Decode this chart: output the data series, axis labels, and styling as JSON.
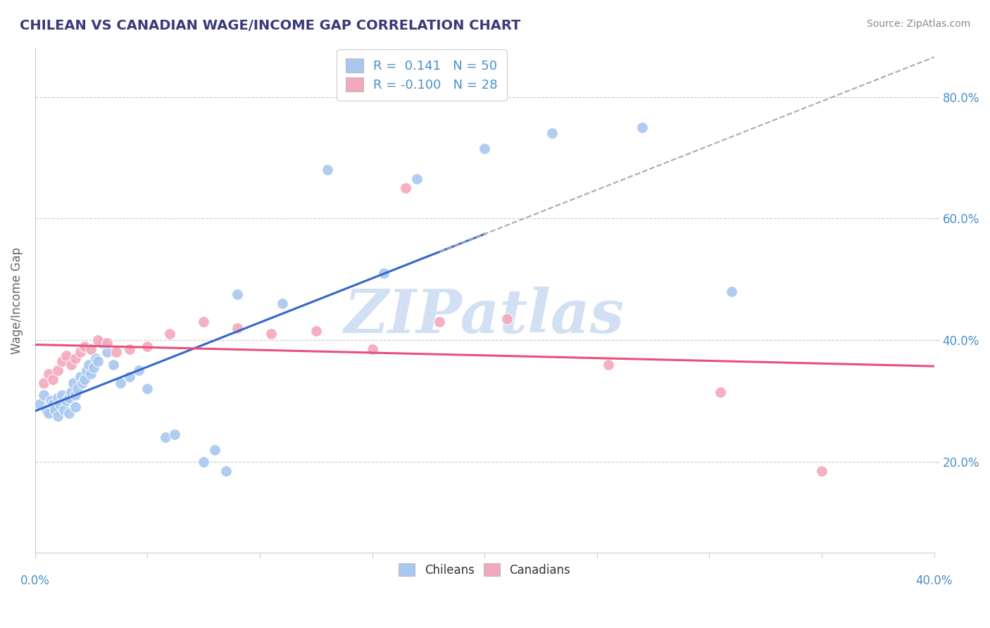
{
  "title": "CHILEAN VS CANADIAN WAGE/INCOME GAP CORRELATION CHART",
  "source": "Source: ZipAtlas.com",
  "ylabel": "Wage/Income Gap",
  "y_ticks": [
    0.2,
    0.4,
    0.6,
    0.8
  ],
  "y_tick_labels": [
    "20.0%",
    "40.0%",
    "60.0%",
    "80.0%"
  ],
  "x_lim": [
    0.0,
    0.4
  ],
  "y_lim": [
    0.05,
    0.88
  ],
  "blue_color": "#A8C8F0",
  "pink_color": "#F4A8BC",
  "blue_line_color": "#3366CC",
  "pink_line_color": "#E8507A",
  "trend_line_color": "#AAAAAA",
  "legend_R1": " 0.141",
  "legend_N1": "50",
  "legend_R2": "-0.100",
  "legend_N2": "28",
  "watermark": "ZIPatlas",
  "watermark_color": "#C0D4EE",
  "title_color": "#3A3A7A",
  "axis_color": "#4A90C8",
  "chileans_x": [
    0.002,
    0.004,
    0.005,
    0.006,
    0.007,
    0.008,
    0.009,
    0.01,
    0.01,
    0.011,
    0.012,
    0.013,
    0.014,
    0.015,
    0.015,
    0.016,
    0.017,
    0.018,
    0.018,
    0.019,
    0.02,
    0.021,
    0.022,
    0.023,
    0.024,
    0.025,
    0.026,
    0.027,
    0.028,
    0.03,
    0.032,
    0.035,
    0.038,
    0.042,
    0.046,
    0.05,
    0.058,
    0.062,
    0.075,
    0.08,
    0.085,
    0.09,
    0.11,
    0.13,
    0.155,
    0.17,
    0.2,
    0.23,
    0.27,
    0.31
  ],
  "chileans_y": [
    0.295,
    0.31,
    0.285,
    0.28,
    0.3,
    0.295,
    0.285,
    0.305,
    0.275,
    0.295,
    0.31,
    0.285,
    0.3,
    0.305,
    0.28,
    0.315,
    0.33,
    0.31,
    0.29,
    0.32,
    0.34,
    0.33,
    0.335,
    0.35,
    0.36,
    0.345,
    0.355,
    0.37,
    0.365,
    0.395,
    0.38,
    0.36,
    0.33,
    0.34,
    0.35,
    0.32,
    0.24,
    0.245,
    0.2,
    0.22,
    0.185,
    0.475,
    0.46,
    0.68,
    0.51,
    0.665,
    0.715,
    0.74,
    0.75,
    0.48
  ],
  "canadians_x": [
    0.004,
    0.006,
    0.008,
    0.01,
    0.012,
    0.014,
    0.016,
    0.018,
    0.02,
    0.022,
    0.025,
    0.028,
    0.032,
    0.036,
    0.042,
    0.05,
    0.06,
    0.075,
    0.09,
    0.105,
    0.125,
    0.15,
    0.165,
    0.18,
    0.21,
    0.255,
    0.305,
    0.35
  ],
  "canadians_y": [
    0.33,
    0.345,
    0.335,
    0.35,
    0.365,
    0.375,
    0.36,
    0.37,
    0.38,
    0.39,
    0.385,
    0.4,
    0.395,
    0.38,
    0.385,
    0.39,
    0.41,
    0.43,
    0.42,
    0.41,
    0.415,
    0.385,
    0.65,
    0.43,
    0.435,
    0.36,
    0.315,
    0.185
  ]
}
